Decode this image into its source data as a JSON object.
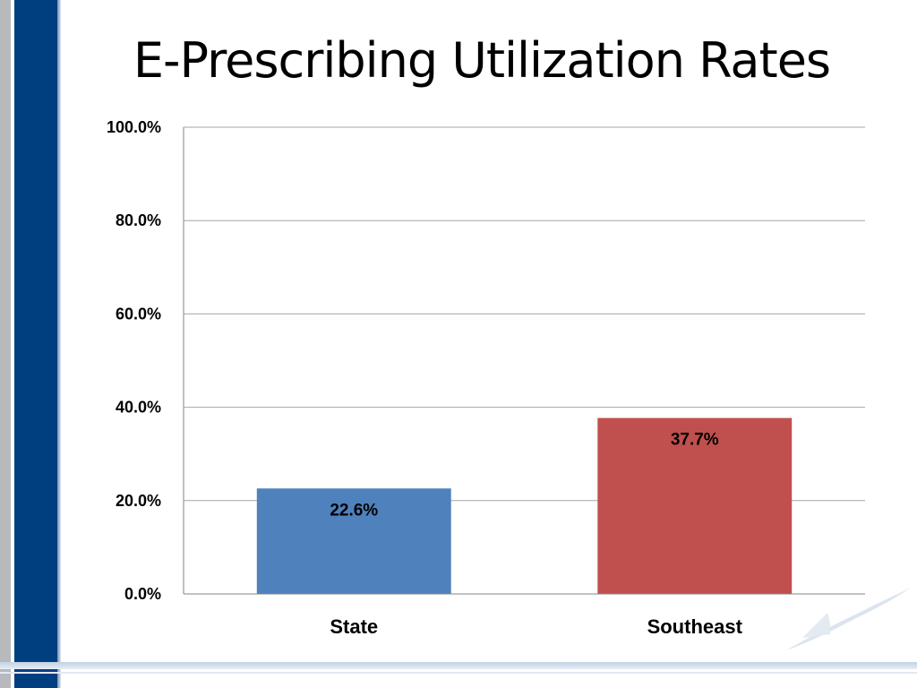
{
  "chart_data": {
    "type": "bar",
    "title": "E-Prescribing Utilization Rates",
    "categories": [
      "State",
      "Southeast"
    ],
    "values": [
      22.6,
      37.7
    ],
    "data_labels": [
      "22.6%",
      "37.7%"
    ],
    "colors": [
      "#4f81bd",
      "#c0504d"
    ],
    "ylim": [
      0,
      100
    ],
    "yticks": [
      0,
      20,
      40,
      60,
      80,
      100
    ],
    "ytick_labels": [
      "0.0%",
      "20.0%",
      "40.0%",
      "60.0%",
      "80.0%",
      "100.0%"
    ],
    "grid": true,
    "legend": "none",
    "xlabel": "",
    "ylabel": ""
  },
  "theme": {
    "accent_blue": "#003f7f",
    "stripe_grey": "#b7b9bc",
    "gridline": "#a6a6a6",
    "decoration_icon": "bird-swoosh-icon"
  }
}
